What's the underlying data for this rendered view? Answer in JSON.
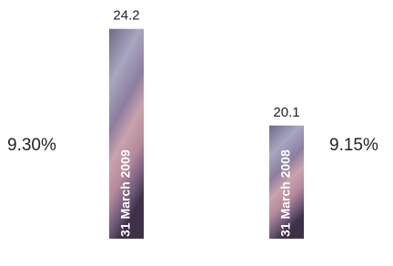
{
  "chart_data": {
    "type": "bar",
    "categories": [
      "31 March 2009",
      "31 March 2008"
    ],
    "values": [
      24.2,
      20.1
    ],
    "ylim": [
      15.3,
      25
    ],
    "annotations": [
      "9.30%",
      "9.15%"
    ]
  }
}
